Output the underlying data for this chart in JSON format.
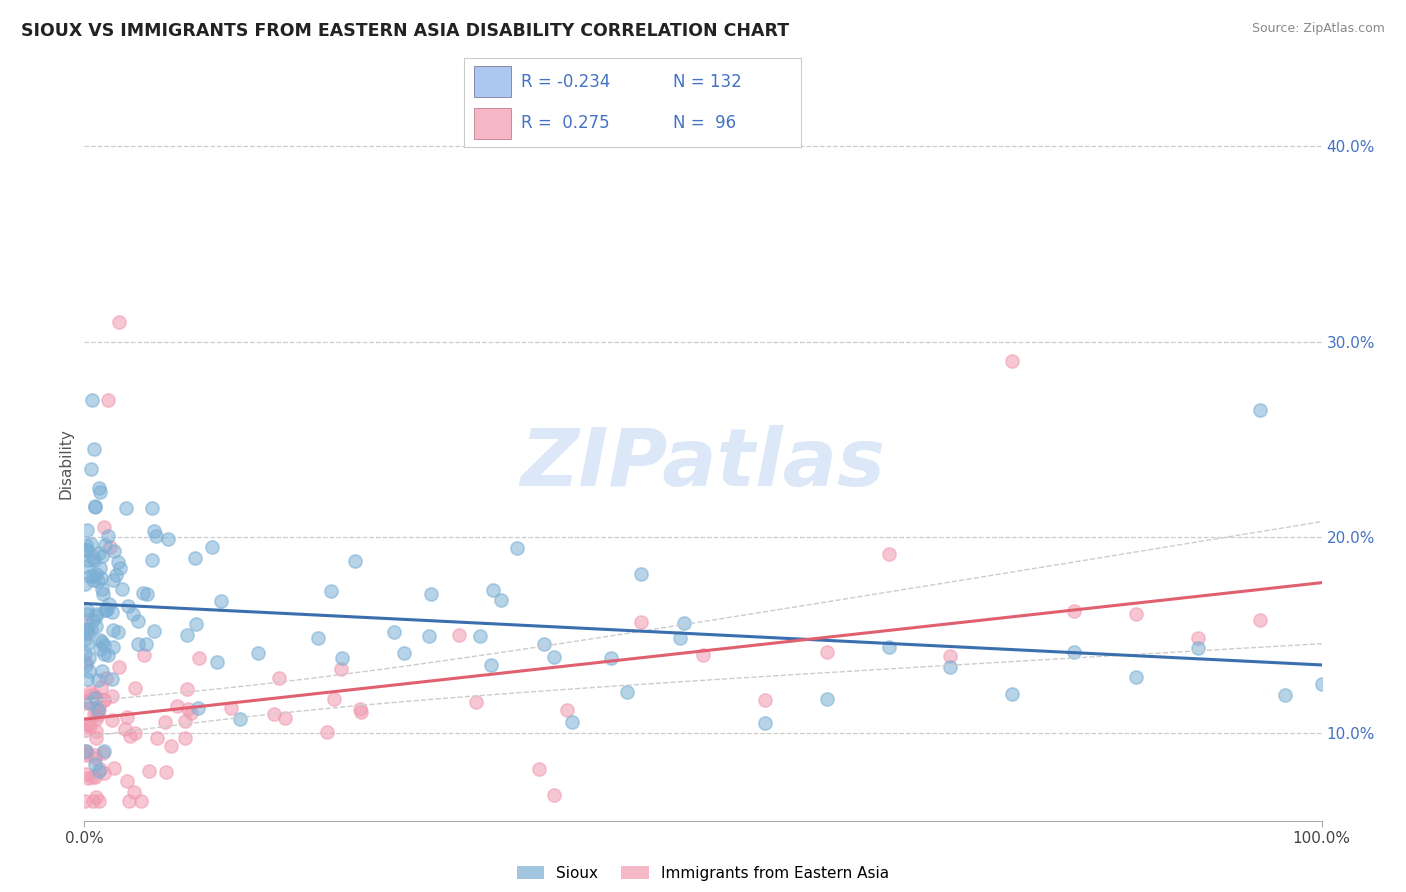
{
  "title": "SIOUX VS IMMIGRANTS FROM EASTERN ASIA DISABILITY CORRELATION CHART",
  "source_text": "Source: ZipAtlas.com",
  "ylabel": "Disability",
  "xlim": [
    0.0,
    1.0
  ],
  "ylim": [
    0.055,
    0.42
  ],
  "ytick_vals": [
    0.1,
    0.2,
    0.3,
    0.4
  ],
  "legend_r1": "R = -0.234",
  "legend_n1": "N = 132",
  "legend_r2": "R =  0.275",
  "legend_n2": "N =  96",
  "series1_color": "#7bafd4",
  "series2_color": "#f09ab0",
  "trend1_color": "#3a6ead",
  "trend2_color": "#e06070",
  "trend_conf_color": "#cccccc",
  "background_color": "#ffffff",
  "grid_color": "#cccccc",
  "watermark_color": "#dce8f8",
  "series1_label": "Sioux",
  "series2_label": "Immigrants from Eastern Asia",
  "legend_box_color1": "#adc8f0",
  "legend_box_color2": "#f4b8c8",
  "legend_text_color": "#4472c4",
  "ytick_color": "#4472c4",
  "title_color": "#222222",
  "source_color": "#888888",
  "xtick_color": "#444444"
}
